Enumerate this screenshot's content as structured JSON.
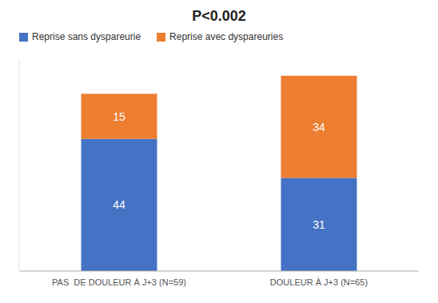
{
  "chart_data": {
    "type": "bar",
    "title": "P<0.002",
    "categories": [
      "PAS  DE DOULEUR À J+3 (N=59)",
      "DOULEUR À J+3 (N=65)"
    ],
    "series": [
      {
        "name": "Reprise sans dyspareurie",
        "color": "#4472C4",
        "values": [
          44,
          31
        ]
      },
      {
        "name": "Reprise avec dyspareuries",
        "color": "#ED7D31",
        "values": [
          15,
          34
        ]
      }
    ],
    "stacked": true,
    "data_labels": true,
    "ylim": [
      0,
      70
    ],
    "tick_labels": "x",
    "legend": "upper left",
    "grid": false
  }
}
